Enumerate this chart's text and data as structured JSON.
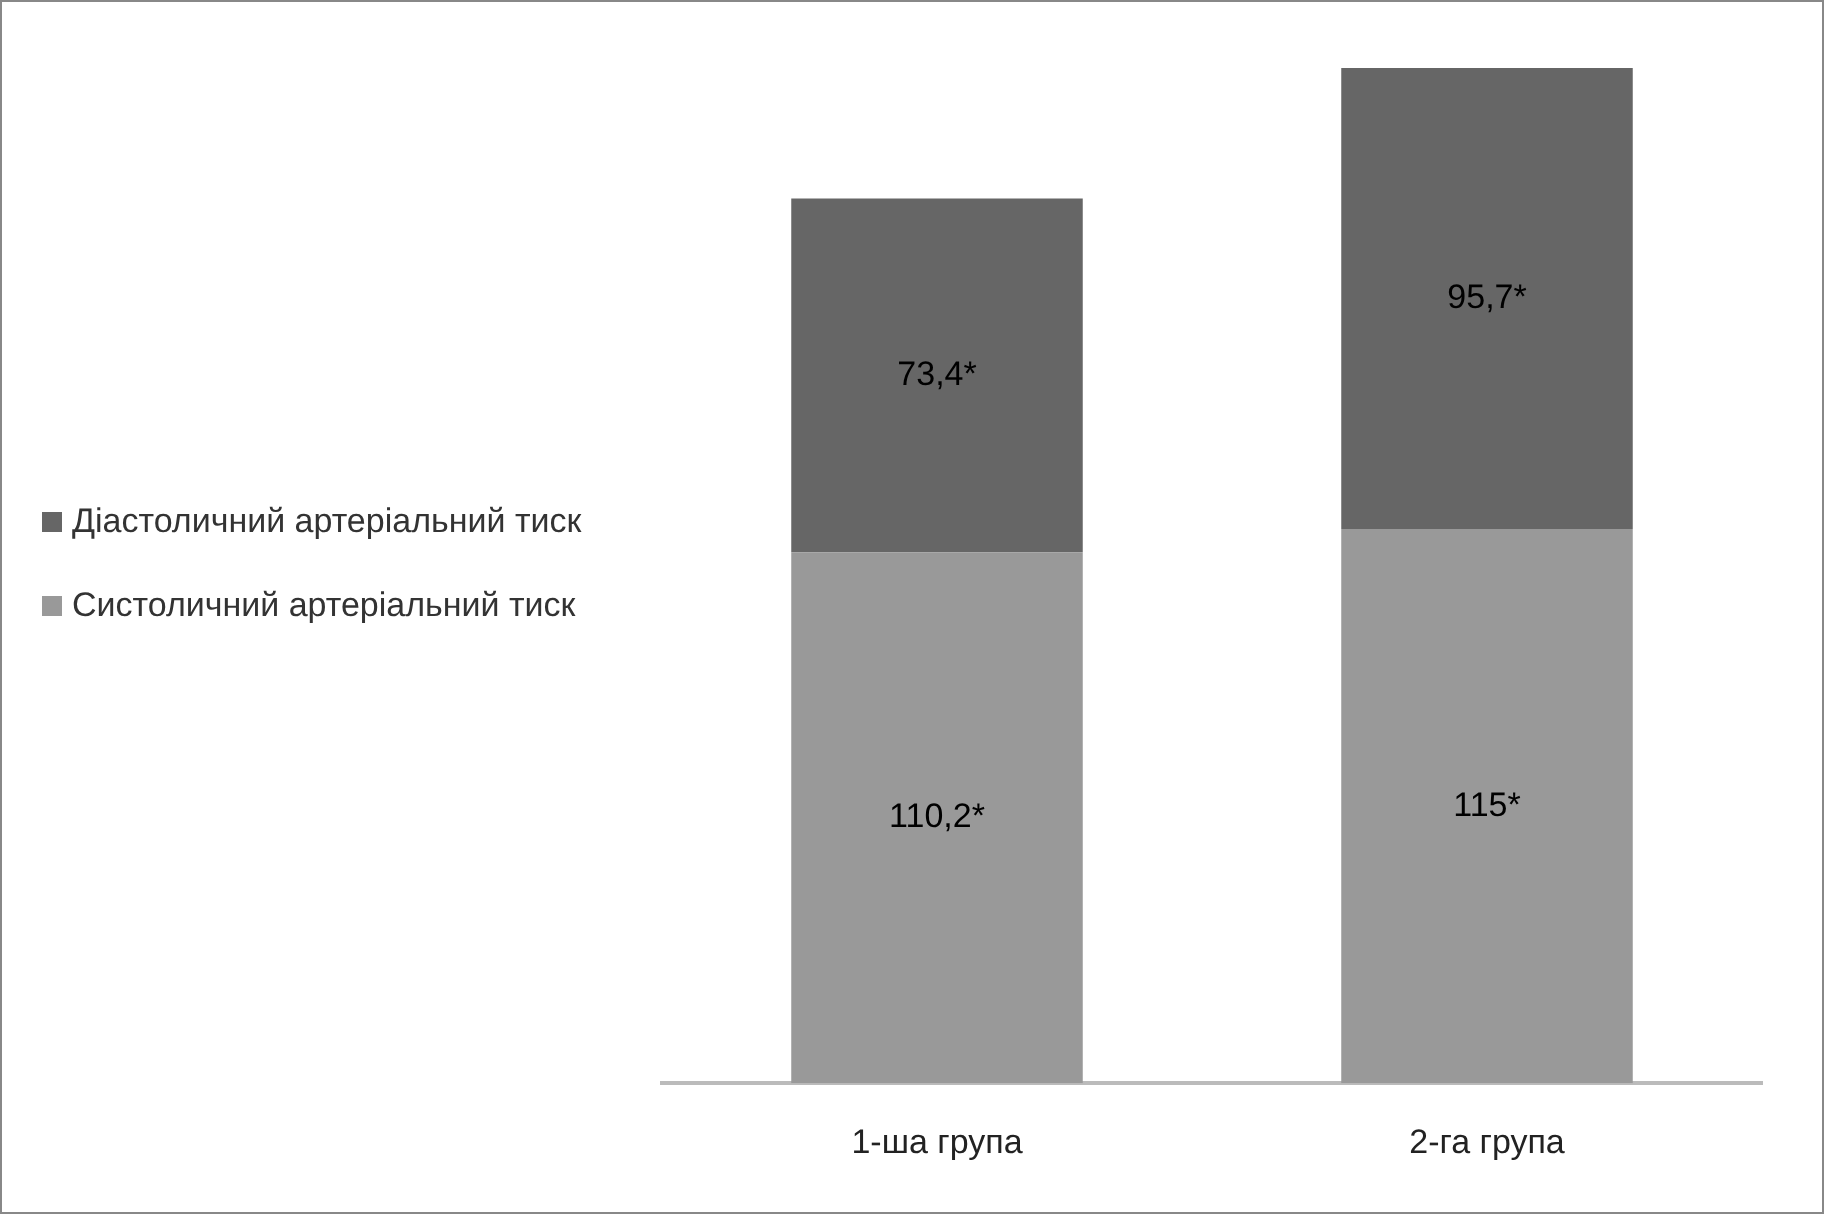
{
  "chart_data": {
    "type": "bar",
    "stacked": true,
    "tick_labels": "x",
    "categories": [
      "1-ша група",
      "2-га група"
    ],
    "legend": "left",
    "series": [
      {
        "name": "Систоличний артеріальний тиск",
        "color": "#999999",
        "values": [
          110.2,
          115
        ],
        "value_labels": [
          "110,2*",
          "115*"
        ]
      },
      {
        "name": "Діастоличний артеріальний тиск",
        "color": "#666666",
        "values": [
          73.4,
          95.7
        ],
        "value_labels": [
          "73,4*",
          "95,7*"
        ]
      }
    ]
  }
}
